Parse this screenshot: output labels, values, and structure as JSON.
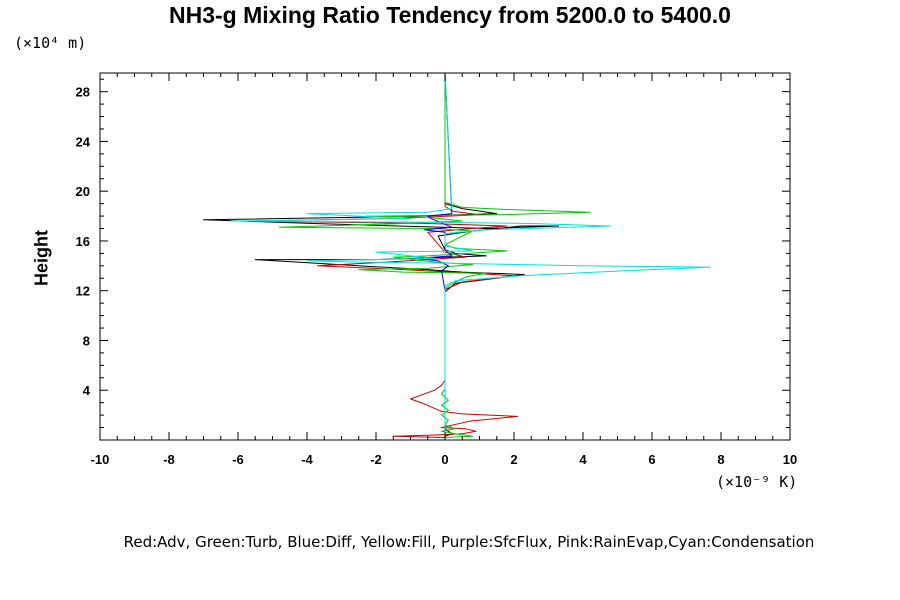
{
  "chart_data": {
    "type": "line",
    "title": "NH3-g Mixing Ratio Tendency from 5200.0 to 5400.0",
    "ylabel": "Height",
    "yunit": "(×10⁴ m)",
    "xunit": "(×10⁻⁹ K)",
    "xlim": [
      -10,
      10
    ],
    "ylim": [
      0,
      29.5
    ],
    "xticks": [
      "-10",
      "-8",
      "-6",
      "-4",
      "-2",
      "0",
      "2",
      "4",
      "6",
      "8",
      "10"
    ],
    "yticks": [
      "4",
      "8",
      "12",
      "16",
      "20",
      "24",
      "28"
    ],
    "grid": false,
    "legend": "Red:Adv, Green:Turb, Blue:Diff, Yellow:Fill, Purple:SfcFlux, Pink:RainEvap,Cyan:Condensation",
    "series": [
      {
        "color": "#000000",
        "points": [
          [
            0,
            0.3
          ],
          [
            0.2,
            0.5
          ],
          [
            0,
            0.9
          ],
          [
            0,
            11.9
          ],
          [
            0.3,
            12.6
          ],
          [
            1.2,
            12.9
          ],
          [
            2.3,
            13.3
          ],
          [
            0.5,
            13.5
          ],
          [
            -0.5,
            13.7
          ],
          [
            -2.5,
            14.0
          ],
          [
            -5.5,
            14.5
          ],
          [
            -2,
            14.5
          ],
          [
            1.2,
            14.8
          ],
          [
            0.3,
            15.0
          ],
          [
            0,
            15.3
          ],
          [
            -0.2,
            16.4
          ],
          [
            0.8,
            16.8
          ],
          [
            2.2,
            17.2
          ],
          [
            3.3,
            17.2
          ],
          [
            1.2,
            17.0
          ],
          [
            -3.8,
            17.4
          ],
          [
            -7.0,
            17.7
          ],
          [
            -2.5,
            17.9
          ],
          [
            0.5,
            18.1
          ],
          [
            1.5,
            18.2
          ],
          [
            0.5,
            18.6
          ],
          [
            0,
            19
          ],
          [
            0,
            29.5
          ]
        ]
      },
      {
        "color": "#cc0000",
        "points": [
          [
            0,
            0.2
          ],
          [
            -1.5,
            0.3
          ],
          [
            -0.3,
            0.4
          ],
          [
            0.5,
            0.5
          ],
          [
            0.9,
            0.7
          ],
          [
            0.6,
            0.9
          ],
          [
            -0.1,
            1.0
          ],
          [
            0.7,
            1.5
          ],
          [
            2.1,
            1.9
          ],
          [
            0.5,
            2.1
          ],
          [
            -0.1,
            2.3
          ],
          [
            -0.6,
            2.9
          ],
          [
            -1.0,
            3.3
          ],
          [
            -0.7,
            3.6
          ],
          [
            -0.3,
            4.0
          ],
          [
            -0.1,
            4.4
          ],
          [
            0,
            4.8
          ],
          [
            0,
            12.1
          ],
          [
            0.5,
            12.7
          ],
          [
            1.4,
            13.0
          ],
          [
            2.0,
            13.2
          ],
          [
            0.8,
            13.4
          ],
          [
            -1.2,
            13.7
          ],
          [
            -3.7,
            14.0
          ],
          [
            -1.7,
            14.3
          ],
          [
            0.6,
            14.7
          ],
          [
            0,
            15.1
          ],
          [
            -0.5,
            16.7
          ],
          [
            0.8,
            17.0
          ],
          [
            1.8,
            17.2
          ],
          [
            -0.5,
            17.4
          ],
          [
            -5.7,
            17.6
          ],
          [
            -1.5,
            17.8
          ],
          [
            1.0,
            18.1
          ],
          [
            0.2,
            18.4
          ],
          [
            0,
            18.8
          ],
          [
            0,
            29.5
          ]
        ]
      },
      {
        "color": "#00cc00",
        "points": [
          [
            0,
            0.2
          ],
          [
            0.8,
            0.3
          ],
          [
            0.3,
            0.5
          ],
          [
            -0.1,
            0.7
          ],
          [
            0.3,
            0.9
          ],
          [
            0,
            1.2
          ],
          [
            0.1,
            1.6
          ],
          [
            -0.1,
            2.0
          ],
          [
            0.1,
            2.4
          ],
          [
            -0.1,
            2.8
          ],
          [
            0.1,
            3.2
          ],
          [
            -0.1,
            3.7
          ],
          [
            0,
            4.1
          ],
          [
            0,
            12.2
          ],
          [
            0.3,
            12.7
          ],
          [
            0.6,
            13.1
          ],
          [
            1.2,
            13.4
          ],
          [
            -1.2,
            13.5
          ],
          [
            -2.5,
            13.7
          ],
          [
            -0.5,
            13.8
          ],
          [
            0.8,
            14.1
          ],
          [
            -0.3,
            14.3
          ],
          [
            -1.5,
            14.7
          ],
          [
            -0.5,
            14.8
          ],
          [
            1.8,
            15.2
          ],
          [
            0.3,
            15.4
          ],
          [
            0,
            15.7
          ],
          [
            0.8,
            16.8
          ],
          [
            -0.3,
            17.0
          ],
          [
            -4.8,
            17.1
          ],
          [
            -1.2,
            17.4
          ],
          [
            0.5,
            17.6
          ],
          [
            -0.5,
            17.9
          ],
          [
            -2.3,
            18.0
          ],
          [
            1.5,
            18.1
          ],
          [
            4.2,
            18.3
          ],
          [
            2.0,
            18.5
          ],
          [
            0.5,
            18.7
          ],
          [
            0,
            19.1
          ],
          [
            0,
            29.5
          ]
        ]
      },
      {
        "color": "#0000ee",
        "points": [
          [
            0,
            0.3
          ],
          [
            0,
            12.0
          ],
          [
            -0.1,
            13.6
          ],
          [
            0.1,
            14.0
          ],
          [
            -0.2,
            14.4
          ],
          [
            -0.8,
            14.6
          ],
          [
            0.2,
            14.8
          ],
          [
            0,
            15.3
          ],
          [
            0,
            16.7
          ],
          [
            -0.6,
            16.9
          ],
          [
            0.2,
            17.1
          ],
          [
            -0.4,
            17.8
          ],
          [
            -0.5,
            18.0
          ],
          [
            0.2,
            18.2
          ],
          [
            0,
            29.5
          ]
        ]
      },
      {
        "color": "#00e0e0",
        "points": [
          [
            0,
            0.2
          ],
          [
            0,
            12.4
          ],
          [
            0.3,
            12.8
          ],
          [
            2.2,
            13.2
          ],
          [
            5.2,
            13.6
          ],
          [
            7.7,
            13.9
          ],
          [
            4.0,
            14.0
          ],
          [
            0.2,
            14.2
          ],
          [
            -2.5,
            14.3
          ],
          [
            -4.0,
            14.4
          ],
          [
            -0.3,
            14.6
          ],
          [
            -2.0,
            15.1
          ],
          [
            0.8,
            15.2
          ],
          [
            0,
            15.6
          ],
          [
            0,
            16.6
          ],
          [
            1.2,
            16.9
          ],
          [
            4.8,
            17.2
          ],
          [
            2.5,
            17.4
          ],
          [
            -0.3,
            17.5
          ],
          [
            -6.2,
            17.6
          ],
          [
            -1.0,
            17.8
          ],
          [
            -4.0,
            18.2
          ],
          [
            -0.5,
            18.3
          ],
          [
            0.2,
            18.6
          ],
          [
            0,
            29.5
          ]
        ]
      }
    ]
  }
}
